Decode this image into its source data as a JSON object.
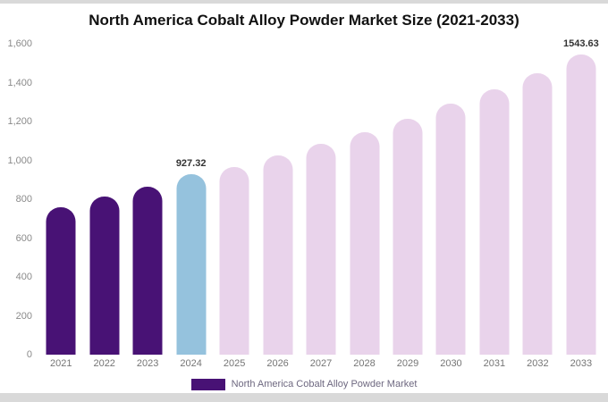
{
  "chart_data": {
    "type": "bar",
    "title": "North America Cobalt Alloy Powder Market Size (2021-2033)",
    "categories": [
      "2021",
      "2022",
      "2023",
      "2024",
      "2025",
      "2026",
      "2027",
      "2028",
      "2029",
      "2030",
      "2031",
      "2032",
      "2033"
    ],
    "values": [
      760,
      812,
      863,
      927.32,
      965,
      1025,
      1085,
      1147,
      1215,
      1290,
      1365,
      1448,
      1543.63
    ],
    "xlabel": "",
    "ylabel": "",
    "ylim": [
      0,
      1600
    ],
    "yticks": [
      {
        "label": "0",
        "value": 0
      },
      {
        "label": "200",
        "value": 200
      },
      {
        "label": "400",
        "value": 400
      },
      {
        "label": "600",
        "value": 600
      },
      {
        "label": "800",
        "value": 800
      },
      {
        "label": "1,000",
        "value": 1000
      },
      {
        "label": "1,200",
        "value": 1200
      },
      {
        "label": "1,400",
        "value": 1400
      },
      {
        "label": "1,600",
        "value": 1600
      }
    ],
    "grid": false,
    "legend_position": "bottom",
    "bar_colors": [
      "purple",
      "purple",
      "purple",
      "blue",
      "pink",
      "pink",
      "pink",
      "pink",
      "pink",
      "pink",
      "pink",
      "pink",
      "pink"
    ],
    "palette": {
      "purple": "#481275",
      "blue": "#95c2dd",
      "pink": "#e9d3eb"
    },
    "annotations": [
      {
        "category": "2024",
        "text": "927.32"
      },
      {
        "category": "2033",
        "text": "1543.63"
      }
    ],
    "legend": [
      {
        "label": "North America Cobalt Alloy Powder Market",
        "swatch": "purple"
      }
    ]
  }
}
